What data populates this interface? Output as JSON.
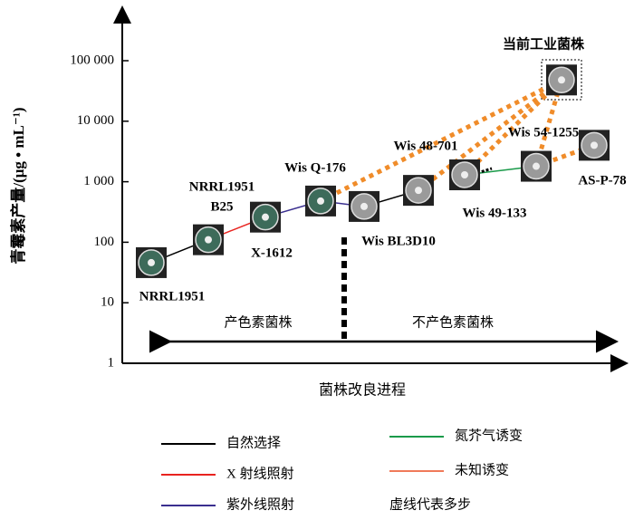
{
  "axis": {
    "y_label": "青霉素产量/(μg • mL⁻¹)",
    "x_label": "菌株改良进程",
    "log": true,
    "ylim": [
      1,
      1000000
    ],
    "yticks": [
      {
        "value": 1,
        "label": "1"
      },
      {
        "value": 10,
        "label": "10"
      },
      {
        "value": 100,
        "label": "100"
      },
      {
        "value": 1000,
        "label": "1 000"
      },
      {
        "value": 10000,
        "label": "10 000"
      },
      {
        "value": 100000,
        "label": "100 000"
      }
    ]
  },
  "regions": [
    "产色素菌株",
    "不产色素菌株"
  ],
  "nodes": [
    {
      "label": [
        "NRRL1951"
      ],
      "value": 46,
      "color": "#3d6b5a"
    },
    {
      "label": [
        "NRRL1951",
        "B25"
      ],
      "value": 110,
      "color": "#3d6b5a"
    },
    {
      "label": [
        "X-1612"
      ],
      "value": 260,
      "color": "#3d6b5a"
    },
    {
      "label": [
        "Wis Q-176"
      ],
      "value": 480,
      "color": "#3d6b5a"
    },
    {
      "label": [
        "Wis BL3D10"
      ],
      "value": 390,
      "color": "#9a9a9a"
    },
    {
      "label": [
        "Wis 48-701"
      ],
      "value": 720,
      "color": "#9a9a9a"
    },
    {
      "label": [
        "Wis 49-133"
      ],
      "value": 1300,
      "color": "#9a9a9a"
    },
    {
      "label": [
        "Wis 54-1255"
      ],
      "value": 1800,
      "color": "#9a9a9a"
    },
    {
      "label": [
        "AS-P-78"
      ],
      "value": 4000,
      "color": "#9a9a9a"
    },
    {
      "label": [
        "当前工业菌株"
      ],
      "value": 48000,
      "color": "#9a9a9a"
    }
  ],
  "legend": [
    {
      "label": "自然选择",
      "color": "#000000"
    },
    {
      "label": "X 射线照射",
      "color": "#e8231f"
    },
    {
      "label": "紫外线照射",
      "color": "#3a2f8f"
    },
    {
      "label": "氮芥气诱变",
      "color": "#1a9a4a"
    },
    {
      "label": "未知诱变",
      "color": "#f07a5a"
    },
    {
      "label": "虚线代表多步",
      "color": "#f08c2a"
    }
  ],
  "edges": [
    {
      "from": 0,
      "to": 1,
      "kind": 0
    },
    {
      "from": 1,
      "to": 2,
      "kind": 1
    },
    {
      "from": 2,
      "to": 3,
      "kind": 2
    },
    {
      "from": 3,
      "to": 4,
      "kind": 2
    },
    {
      "from": 4,
      "to": 5,
      "kind": 0
    },
    {
      "from": 6,
      "to": 7,
      "kind": 3
    },
    {
      "from": 7,
      "to": 8,
      "kind": 5
    },
    {
      "from": 3,
      "to": 9,
      "kind": 5
    },
    {
      "from": 5,
      "to": 9,
      "kind": 5
    },
    {
      "from": 6,
      "to": 9,
      "kind": 5
    },
    {
      "from": 7,
      "to": 9,
      "kind": 5
    }
  ]
}
